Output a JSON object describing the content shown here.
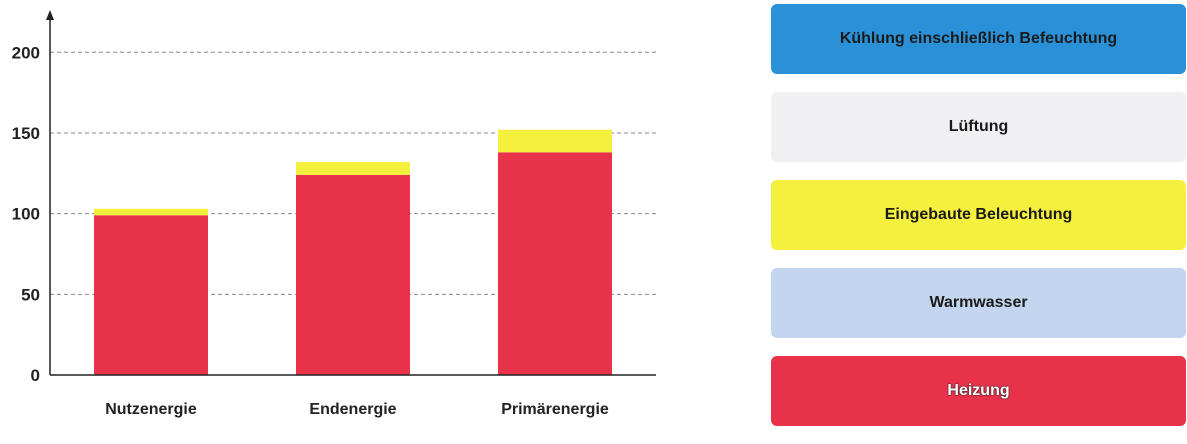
{
  "chart_data": {
    "type": "bar",
    "stacked": true,
    "categories": [
      "Nutzenergie",
      "Endenergie",
      "Primärenergie"
    ],
    "series": [
      {
        "name": "Heizung",
        "values": [
          99,
          124,
          138
        ],
        "color": "#e8324a"
      },
      {
        "name": "Eingebaute Beleuchtung",
        "values": [
          4,
          8,
          14
        ],
        "color": "#f5ef3d"
      }
    ],
    "ylim": [
      0,
      220
    ],
    "yticks": [
      "0",
      "50",
      "100",
      "150",
      "200"
    ],
    "ytick_values": [
      0,
      50,
      100,
      150,
      200
    ],
    "grid": true,
    "xlabel": "",
    "ylabel": "",
    "legend_position": "right"
  },
  "legend": [
    {
      "label": "Kühlung einschließlich Befeuchtung",
      "color": "#2a91d8",
      "dark": false
    },
    {
      "label": "Lüftung",
      "color": "#f0f0f3",
      "dark": false
    },
    {
      "label": "Eingebaute Beleuchtung",
      "color": "#f5ef3d",
      "dark": false
    },
    {
      "label": "Warmwasser",
      "color": "#c4d6ef",
      "dark": false
    },
    {
      "label": "Heizung",
      "color": "#e8324a",
      "dark": true
    }
  ]
}
